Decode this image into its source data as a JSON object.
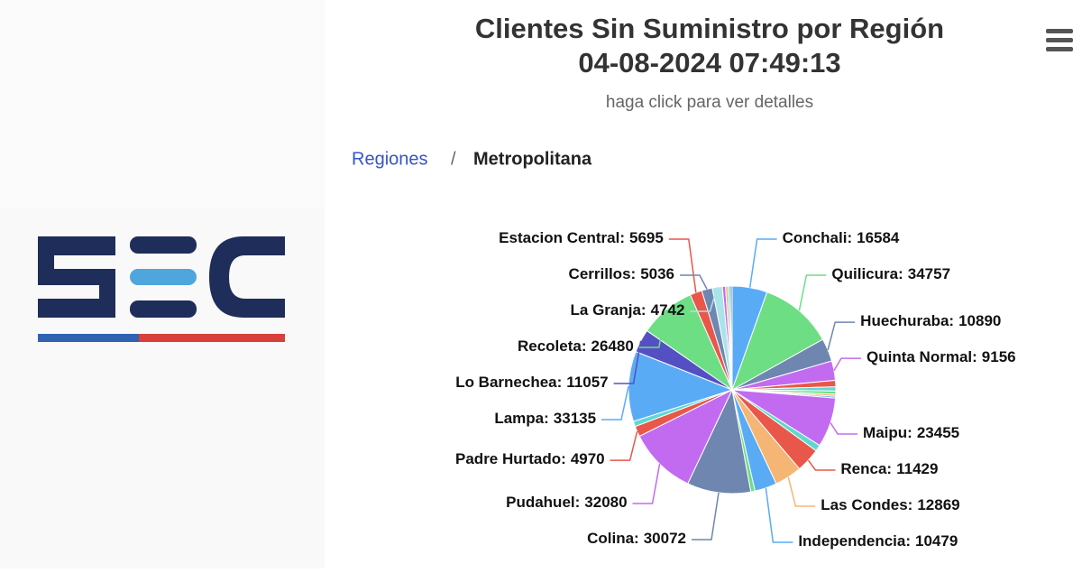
{
  "chart_data": {
    "type": "pie",
    "title": "Clientes Sin Suministro por Región",
    "subtitle": "04-08-2024 07:49:13",
    "caption": "haga click para ver detalles",
    "breadcrumb": [
      "Regiones",
      "/",
      "Metropolitana"
    ],
    "categories": [
      "Conchali:",
      "Quilicura:",
      "Huechuraba:",
      "Quinta Normal:",
      null,
      null,
      null,
      null,
      null,
      "Maipu:",
      null,
      "Renca:",
      "Las Condes:",
      "Independencia:",
      null,
      "Colina:",
      "Pudahuel:",
      "Padre Hurtado:",
      null,
      "Lampa:",
      "Lo Barnechea:",
      "Recoleta:",
      "Estacion Central:",
      "Cerrillos:",
      "La Granja:",
      null,
      null,
      null,
      null
    ],
    "values": [
      16584,
      34757,
      10890,
      9156,
      3000,
      2000,
      1500,
      1000,
      800,
      23455,
      3000,
      11429,
      12869,
      10479,
      2000,
      30072,
      32080,
      4970,
      2500,
      33135,
      11057,
      26480,
      5695,
      5036,
      4742,
      1500,
      1200,
      1000,
      900
    ],
    "colors": [
      "#5aabf5",
      "#6dde84",
      "#6f86b0",
      "#c26bf0",
      "#e8574a",
      "#5ed9cf",
      "#6dde84",
      "#f5b574",
      "#5aabf5",
      "#c26bf0",
      "#5ed9cf",
      "#e8574a",
      "#f5b574",
      "#5aabf5",
      "#6dde84",
      "#6f86b0",
      "#c26bf0",
      "#e8574a",
      "#5ed9cf",
      "#5aabf5",
      "#5450c4",
      "#6dde84",
      "#e8574a",
      "#6f86b0",
      "#a9e4ea",
      "#c26bf0",
      "#f5b574",
      "#5ed9cf",
      "#6f86b0"
    ]
  }
}
